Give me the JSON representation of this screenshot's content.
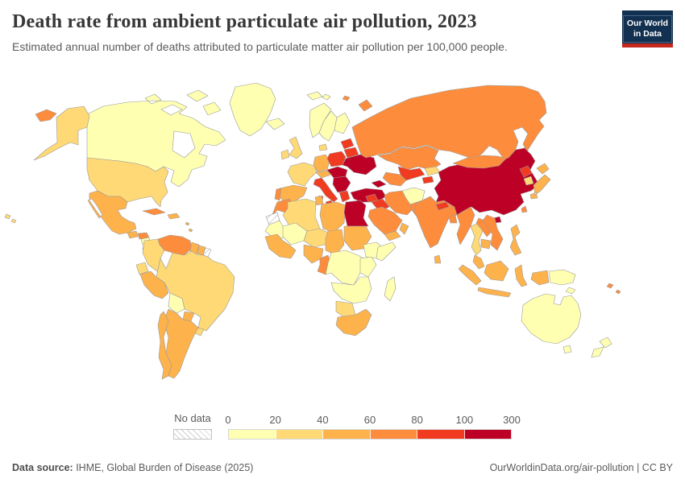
{
  "header": {
    "title": "Death rate from ambient particulate air pollution, 2023",
    "subtitle": "Estimated annual number of deaths attributed to particulate matter air pollution per 100,000 people.",
    "logo": {
      "line1": "Our World",
      "line2": "in Data",
      "bg_color": "#12304f",
      "bar_color": "#c5281f"
    }
  },
  "legend": {
    "no_data_label": "No data",
    "ticks": [
      "0",
      "20",
      "40",
      "60",
      "80",
      "100",
      "300"
    ]
  },
  "footer": {
    "source_label": "Data source:",
    "source_text": " IHME, Global Burden of Disease (2025)",
    "credit": "OurWorldinData.org/air-pollution | CC BY"
  },
  "chart_data": {
    "type": "choropleth",
    "title": "Death rate from ambient particulate air pollution, 2023",
    "unit": "deaths per 100,000 people",
    "legend_ticks": [
      0,
      20,
      40,
      60,
      80,
      100,
      300
    ],
    "bins": [
      {
        "label": "0-20",
        "color": "#ffffb2"
      },
      {
        "label": "20-40",
        "color": "#fed976"
      },
      {
        "label": "40-60",
        "color": "#feb24c"
      },
      {
        "label": "60-80",
        "color": "#fd8d3c"
      },
      {
        "label": "80-100",
        "color": "#f03b20"
      },
      {
        "label": "100-300",
        "color": "#bd0026"
      }
    ],
    "no_data": {
      "label": "No data",
      "style": "hatched"
    },
    "border_color": "#9a9a9a",
    "regions": {
      "canada": 0,
      "greenland": 0,
      "iceland": 0,
      "norway": 0,
      "sweden": 0,
      "finland": 0,
      "svalbard": 0,
      "nicaragua": 0,
      "bolivia": 0,
      "mauritania": 0,
      "mali": 0,
      "ethiopia": 0,
      "somalia": 0,
      "east-africa": 0,
      "central-africa": 0,
      "southern-africa": 0,
      "madagascar": 0,
      "afghanistan": 0,
      "australia": 0,
      "new-zealand": 0,
      "papua-new-guinea": 0,
      "united-states": 1,
      "costa-rica": 1,
      "panama": 1,
      "colombia": 1,
      "ecuador": 1,
      "brazil": 1,
      "uruguay": 1,
      "united-kingdom": 1,
      "ireland": 1,
      "france": 1,
      "denmark": 1,
      "algeria": 1,
      "niger": 1,
      "namibia-botswana": 1,
      "kyrgyzstan": 1,
      "south-korea": 1,
      "thailand": 1,
      "mexico": 2,
      "guatemala": 2,
      "hispaniola": 2,
      "caribbean": 2,
      "peru": 2,
      "chile": 2,
      "argentina": 2,
      "paraguay": 2,
      "guyana": 2,
      "suriname": 2,
      "spain": 2,
      "germany": 2,
      "austria-switzerland": 2,
      "tunisia": 2,
      "libya": 2,
      "chad": 2,
      "sudan": 2,
      "west-africa": 2,
      "nigeria": 2,
      "south-africa": 2,
      "yemen": 2,
      "oman": 2,
      "cambodia": 2,
      "japan": 2,
      "malaysia": 2,
      "philippines": 2,
      "indonesia": 2,
      "sri-lanka": 2,
      "venezuela": 3,
      "cuba": 3,
      "honduras": 3,
      "portugal": 3,
      "morocco": 3,
      "russia": 3,
      "kazakhstan": 3,
      "turkmenistan": 3,
      "mongolia": 3,
      "saudi-arabia": 3,
      "iran": 3,
      "pakistan": 3,
      "india": 3,
      "bangladesh": 3,
      "myanmar": 3,
      "laos": 3,
      "vietnam": 3,
      "cameroon-gabon": 3,
      "taiwan": 3,
      "pacific-islands": 3,
      "poland": 4,
      "belarus": 4,
      "baltics": 4,
      "italy": 4,
      "greece": 4,
      "syria": 4,
      "iraq": 4,
      "uzbekistan": 4,
      "tajikistan": 4,
      "nepal": 4,
      "north-korea": 4,
      "china": 5,
      "egypt": 5,
      "turkey": 5,
      "ukraine": 5,
      "balkans": 5,
      "central-europe": 5,
      "caucasus": 5,
      "french-guiana": "no_data",
      "western-sahara": "no_data"
    }
  }
}
